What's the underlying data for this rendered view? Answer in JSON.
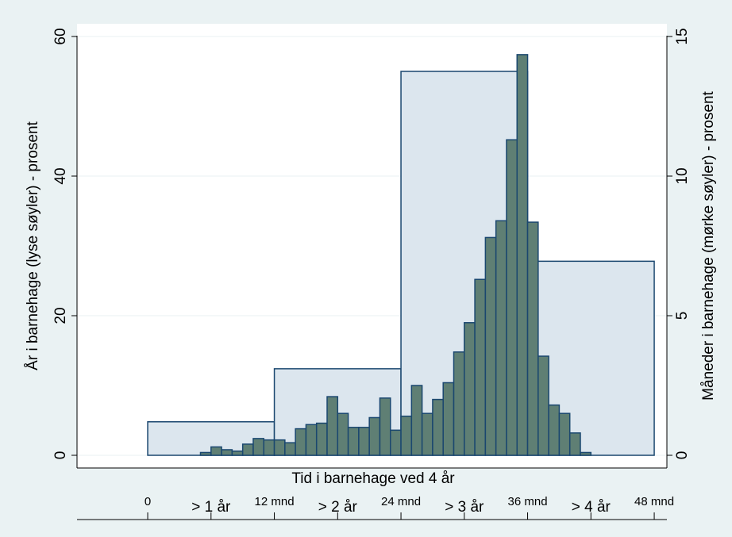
{
  "chart_data": {
    "type": "histogram",
    "xlabel": "Tid i barnehage ved 4 år",
    "ylabel": "År i barnehage (lyse søyler) - prosent",
    "y2label": "Måneder i barnehage (mørke søyler) - prosent",
    "xlim": [
      -6.7,
      49.2
    ],
    "ylim": [
      0,
      60
    ],
    "yticks": [
      0,
      20,
      40,
      60
    ],
    "y2lim": [
      0,
      15
    ],
    "y2ticks": [
      0,
      5,
      10,
      15
    ],
    "xticks": [
      {
        "value": 0,
        "label": "0"
      },
      {
        "value": 6,
        "label": "> 1 år"
      },
      {
        "value": 12,
        "label": "12 mnd"
      },
      {
        "value": 18,
        "label": "> 2 år"
      },
      {
        "value": 24,
        "label": "24 mnd"
      },
      {
        "value": 30,
        "label": "> 3 år"
      },
      {
        "value": 36,
        "label": "36 mnd"
      },
      {
        "value": 42,
        "label": "> 4 år"
      },
      {
        "value": 48,
        "label": "48 mnd"
      }
    ],
    "grid": true,
    "series": [
      {
        "color": "#dce6ee",
        "axis": "y",
        "bins": [
          0,
          12,
          24,
          36,
          48
        ],
        "values": [
          4.8,
          12.4,
          55,
          27.8
        ]
      },
      {
        "color": "#5f7f74",
        "axis": "y2",
        "bins": [
          5,
          6,
          7,
          8,
          9,
          10,
          11,
          12,
          13,
          14,
          15,
          16,
          17,
          18,
          19,
          20,
          21,
          22,
          23,
          24,
          25,
          26,
          27,
          28,
          29,
          30,
          31,
          32,
          33,
          34,
          35,
          36,
          37,
          38,
          39,
          40,
          41,
          42
        ],
        "values": [
          0.1,
          0.3,
          0.2,
          0.15,
          0.4,
          0.6,
          0.55,
          0.55,
          0.45,
          0.95,
          1.1,
          1.15,
          2.1,
          1.5,
          1.0,
          1.0,
          1.35,
          2.05,
          0.9,
          1.4,
          2.5,
          1.5,
          2.0,
          2.6,
          3.7,
          4.75,
          6.3,
          7.8,
          8.4,
          11.3,
          14.35,
          8.35,
          3.55,
          1.8,
          1.5,
          0.8,
          0.1
        ]
      }
    ]
  }
}
